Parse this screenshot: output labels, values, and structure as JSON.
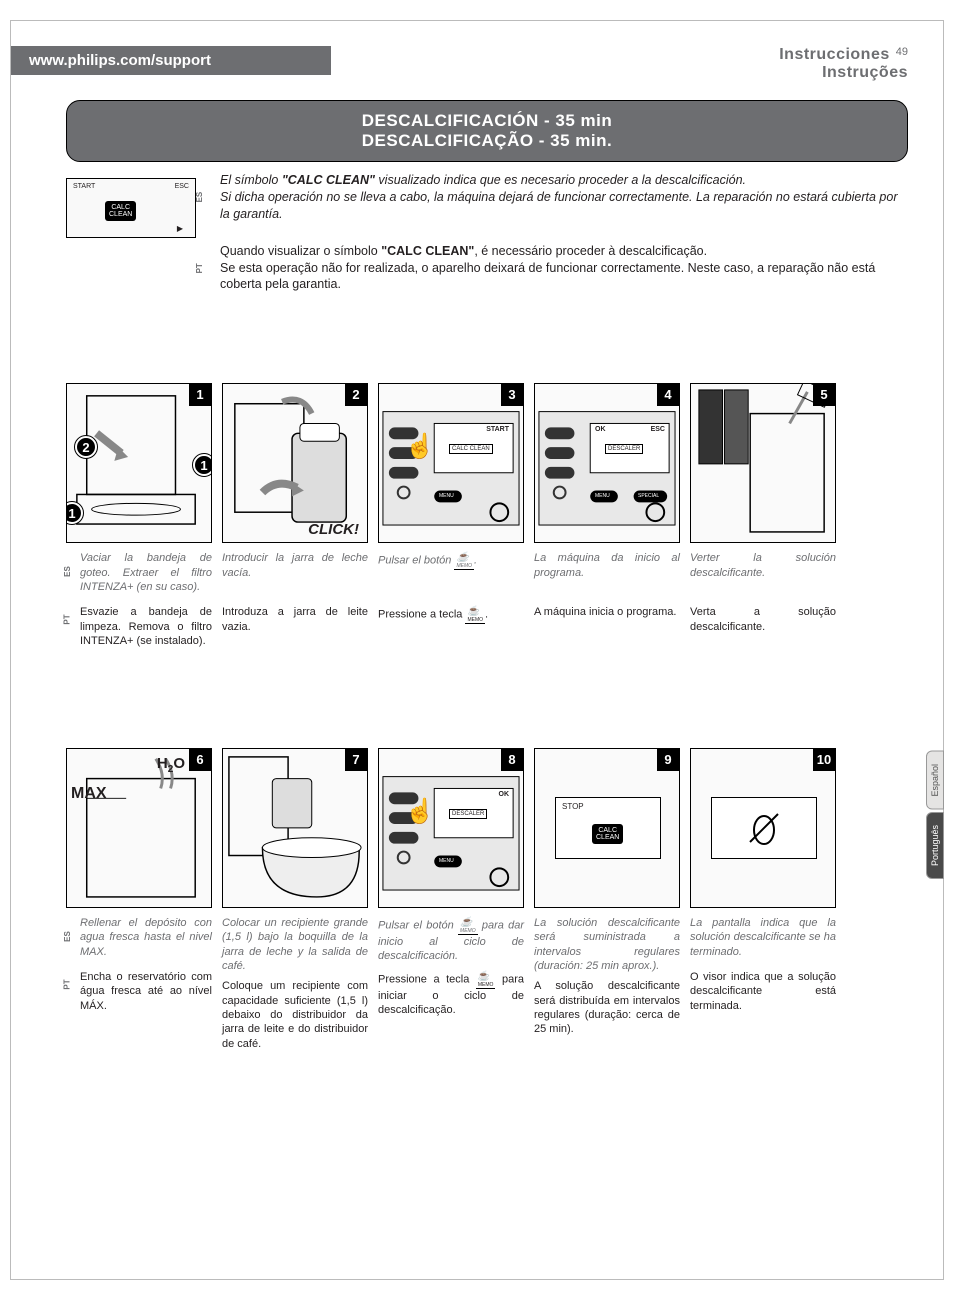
{
  "header": {
    "url": "www.philips.com/support",
    "title_es": "Instrucciones",
    "title_pt": "Instruções",
    "page_number": "49"
  },
  "title": {
    "line1": "DESCALCIFICACIÓN - 35 min",
    "line2": "DESCALCIFICAÇÃO - 35 min."
  },
  "calc_box": {
    "start": "START",
    "esc": "ESC",
    "badge": "CALC\nCLEAN",
    "arrow": "▶"
  },
  "intro": {
    "es_html": "El símbolo <strong>\"CALC CLEAN\"</strong> visualizado indica que es necesario proceder a la descalcificación.<br>Si dicha operación no se lleva a cabo, la máquina dejará de funcionar correctamente. La reparación no estará cubierta por la garantía.",
    "pt_html": "Quando visualizar o símbolo <strong>\"CALC CLEAN\"</strong>, é necessário proceder à descalcificação.<br>Se esta operação não for realizada, o aparelho deixará de funcionar correctamente. Neste caso, a reparação não está coberta pela garantia.",
    "es_tab": "ES",
    "pt_tab": "PT"
  },
  "side_tabs": {
    "es": "Español",
    "pt": "Português"
  },
  "row1": [
    {
      "num": "1",
      "es": "Vaciar la bandeja de goteo. Extraer el filtro INTENZA+ (en su caso).",
      "pt": "Esvazie a bandeja de limpeza. Remova o filtro INTENZA+ (se instalado).",
      "fig": "machine",
      "labels": {
        "c1": "1",
        "c2": "2",
        "c1b": "1"
      }
    },
    {
      "num": "2",
      "es": "Introducir la jarra de leche vacía.",
      "pt": "Introduza a jarra de leite vazia.",
      "fig": "carafe",
      "click": "CLICK!"
    },
    {
      "num": "3",
      "es": "Pulsar el botón ",
      "pt": "Pressione a tecla ",
      "es_suffix": ".",
      "pt_suffix": ".",
      "fig": "panel_start",
      "screen": {
        "tl": "",
        "tr": "START",
        "mid": "CALC CLEAN",
        "bl": "MENU"
      }
    },
    {
      "num": "4",
      "es": "La máquina da inicio al programa.",
      "pt": "A máquina inicia o programa.",
      "fig": "panel_ok",
      "screen": {
        "tl": "OK",
        "tr": "ESC",
        "mid": "DESCALER",
        "bl": "MENU",
        "br": "SPECIAL"
      }
    },
    {
      "num": "5",
      "es": "Verter la solución descalcificante.",
      "pt": "Verta a solução descalcificante.",
      "fig": "pour"
    }
  ],
  "row2": [
    {
      "num": "6",
      "es": "Rellenar el depósito con agua fresca hasta el nivel MAX.",
      "pt": "Encha o reservatório com água fresca até ao nível MÁX.",
      "fig": "tank",
      "h2o": "H",
      "h2o_sub": "2",
      "h2o_o": "O",
      "max": "MAX"
    },
    {
      "num": "7",
      "es": "Colocar un recipiente grande (1,5 l) bajo la boquilla de la jarra de leche y la salida de café.",
      "pt": "Coloque um recipiente com capacidade suficiente (1,5 l) debaixo do distribuidor da jarra de leite e do distribuidor de café.",
      "fig": "bowl"
    },
    {
      "num": "8",
      "es": "Pulsar el botón ",
      "es_suffix": " para dar inicio al ciclo de descalcificación.",
      "pt": "Pressione a tecla ",
      "pt_suffix": " para iniciar o ciclo de descalcificação.",
      "fig": "panel_ok2",
      "screen": {
        "tl": "",
        "tr": "OK",
        "mid": "DESCALER",
        "bl": "MENU"
      }
    },
    {
      "num": "9",
      "es": "La solución descalcificante será suministrada a intervalos regulares (duración: 25 min aprox.).",
      "pt": "A solução descalcificante será distribuída em intervalos regulares (duração: cerca de 25 min).",
      "fig": "stop",
      "screen": {
        "tl": "STOP",
        "mid": "CALC CLEAN"
      }
    },
    {
      "num": "10",
      "es": "La pantalla indica que la solución descalcificante se ha terminado.",
      "pt": "O visor indica que a solução descalcificante está terminada.",
      "fig": "empty"
    }
  ],
  "icons": {
    "cup": "☕",
    "nobean": "🚫"
  }
}
